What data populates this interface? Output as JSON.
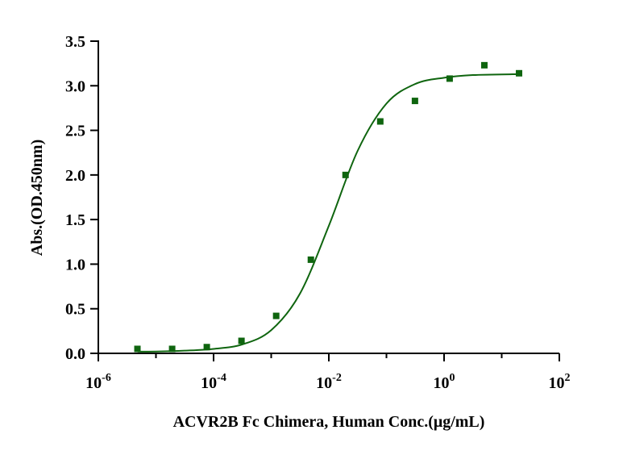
{
  "chart_data": {
    "type": "scatter",
    "xlabel": "ACVR2B Fc Chimera, Human Conc.(μg/mL)",
    "ylabel": "Abs.(OD.450nm)",
    "xscale": "log",
    "xlim": [
      1e-06,
      100
    ],
    "ylim": [
      0,
      3.5
    ],
    "xticks": [
      {
        "value": 1e-06,
        "label": "10",
        "exponent": "-6"
      },
      {
        "value": 0.0001,
        "label": "10",
        "exponent": "-4"
      },
      {
        "value": 0.01,
        "label": "10",
        "exponent": "-2"
      },
      {
        "value": 1,
        "label": "10",
        "exponent": "0"
      },
      {
        "value": 100,
        "label": "10",
        "exponent": "2"
      }
    ],
    "xminor_ticks": [
      1e-05,
      0.001,
      0.1,
      10
    ],
    "yticks": [
      {
        "value": 0,
        "label": "0.0"
      },
      {
        "value": 0.5,
        "label": "0.5"
      },
      {
        "value": 1,
        "label": "1.0"
      },
      {
        "value": 1.5,
        "label": "1.5"
      },
      {
        "value": 2,
        "label": "2.0"
      },
      {
        "value": 2.5,
        "label": "2.5"
      },
      {
        "value": 3,
        "label": "3.0"
      },
      {
        "value": 3.5,
        "label": "3.5"
      }
    ],
    "series": [
      {
        "type": "scatter",
        "color": "#0f650f",
        "x": [
          4.77e-06,
          1.91e-05,
          7.63e-05,
          0.000305,
          0.00122,
          0.00488,
          0.0195,
          0.0781,
          0.3125,
          1.25,
          5,
          20
        ],
        "values": [
          0.05,
          0.05,
          0.07,
          0.14,
          0.42,
          1.05,
          2.0,
          2.6,
          2.83,
          3.08,
          3.23,
          3.14
        ]
      },
      {
        "type": "line",
        "color": "#0f650f",
        "x": [
          4.8e-06,
          1e-05,
          3.16e-05,
          0.0001,
          0.000316,
          0.001,
          0.00316,
          0.01,
          0.0316,
          0.1,
          0.316,
          1,
          3.16,
          20
        ],
        "values": [
          0.02,
          0.02,
          0.03,
          0.05,
          0.1,
          0.26,
          0.67,
          1.43,
          2.27,
          2.8,
          3.02,
          3.09,
          3.12,
          3.13
        ]
      }
    ]
  }
}
